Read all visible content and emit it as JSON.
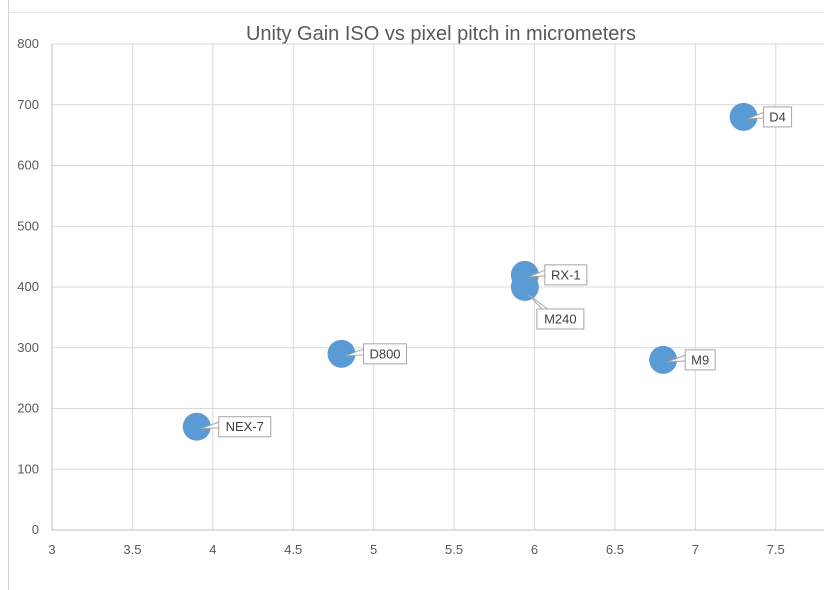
{
  "chart_data": {
    "type": "scatter",
    "title": "Unity Gain ISO vs pixel pitch in micrometers",
    "xlabel": "",
    "ylabel": "",
    "xlim": [
      3,
      7.8
    ],
    "ylim": [
      0,
      800
    ],
    "x_ticks": [
      "3",
      "3.5",
      "4",
      "4.5",
      "5",
      "5.5",
      "6",
      "6.5",
      "7",
      "7.5"
    ],
    "y_ticks": [
      "0",
      "100",
      "200",
      "300",
      "400",
      "500",
      "600",
      "700",
      "800"
    ],
    "grid": true,
    "legend": "none",
    "points": [
      {
        "label": "NEX-7",
        "x": 3.9,
        "y": 170
      },
      {
        "label": "D800",
        "x": 4.8,
        "y": 290
      },
      {
        "label": "RX-1",
        "x": 5.94,
        "y": 420
      },
      {
        "label": "M240",
        "x": 5.94,
        "y": 400
      },
      {
        "label": "M9",
        "x": 6.8,
        "y": 280
      },
      {
        "label": "D4",
        "x": 7.3,
        "y": 680
      }
    ],
    "colors": {
      "marker": "#5b9bd5",
      "grid": "#d9d9d9",
      "axis": "#bfbfbf",
      "text": "#595959",
      "label_border": "#a6a6a6"
    }
  }
}
